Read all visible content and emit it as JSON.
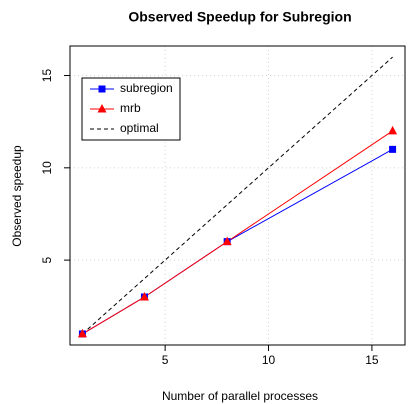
{
  "chart_data": {
    "type": "line",
    "title": "Observed Speedup for Subregion",
    "x_label": "Number of parallel processes",
    "y_label": "Observed speedup",
    "xlim": [
      0.4,
      16.6
    ],
    "ylim": [
      0.4,
      16.6
    ],
    "xticks": [
      5,
      10,
      15
    ],
    "yticks": [
      5,
      10,
      15
    ],
    "grid": true,
    "legend": "top-left",
    "series": [
      {
        "name": "subregion",
        "color": "#0000ff",
        "marker": "square",
        "dashed": false,
        "x": [
          1,
          4,
          8,
          16
        ],
        "values": [
          1,
          3,
          6,
          11
        ]
      },
      {
        "name": "mrb",
        "color": "#ff0000",
        "marker": "triangle",
        "dashed": false,
        "x": [
          1,
          4,
          8,
          16
        ],
        "values": [
          1,
          3,
          6,
          12
        ]
      },
      {
        "name": "optimal",
        "color": "#000000",
        "marker": null,
        "dashed": true,
        "x": [
          1,
          4,
          8,
          16
        ],
        "values": [
          1,
          4,
          8,
          16
        ]
      }
    ]
  }
}
